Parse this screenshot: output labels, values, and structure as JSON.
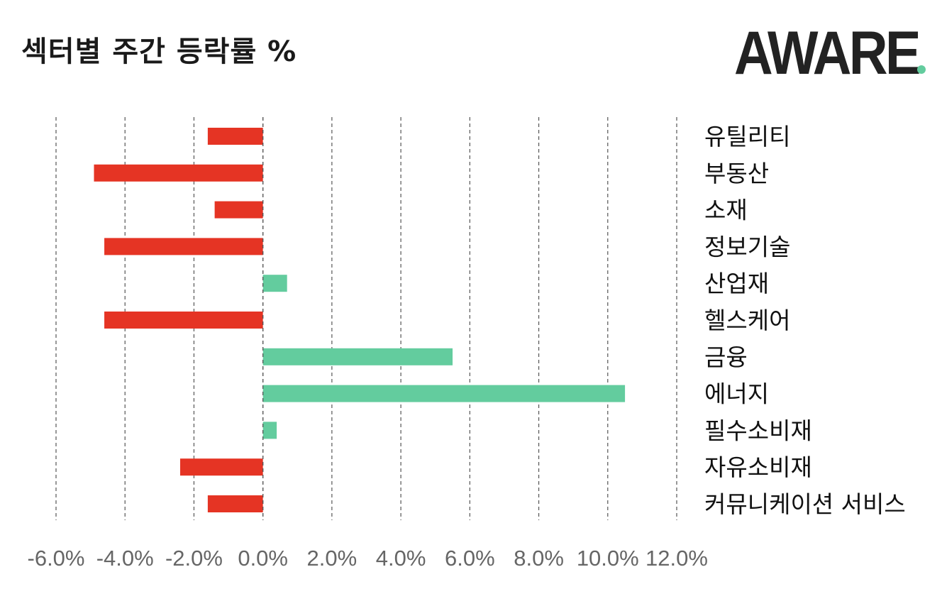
{
  "header": {
    "title": "섹터별 주간 등락률 %",
    "logo_text": "AWARE"
  },
  "colors": {
    "negative": "#e53424",
    "positive": "#63cc9e",
    "grid": "#555555",
    "logo_dark": "#222222",
    "logo_accent": "#63cc9e"
  },
  "chart_data": {
    "type": "bar",
    "orientation": "horizontal",
    "categories": [
      "유틸리티",
      "부동산",
      "소재",
      "정보기술",
      "산업재",
      "헬스케어",
      "금융",
      "에너지",
      "필수소비재",
      "자유소비재",
      "커뮤니케이션 서비스"
    ],
    "values": [
      -1.6,
      -4.9,
      -1.4,
      -4.6,
      0.7,
      -4.6,
      5.5,
      10.5,
      0.4,
      -2.4,
      -1.6
    ],
    "xlim": [
      -6.0,
      12.0
    ],
    "x_ticks": [
      -6.0,
      -4.0,
      -2.0,
      0.0,
      2.0,
      4.0,
      6.0,
      8.0,
      10.0,
      12.0
    ],
    "tick_labels": [
      "-6.0%",
      "-4.0%",
      "-2.0%",
      "0.0%",
      "2.0%",
      "4.0%",
      "6.0%",
      "8.0%",
      "10.0%",
      "12.0%"
    ],
    "grid": "dashed vertical",
    "legend": "none"
  }
}
